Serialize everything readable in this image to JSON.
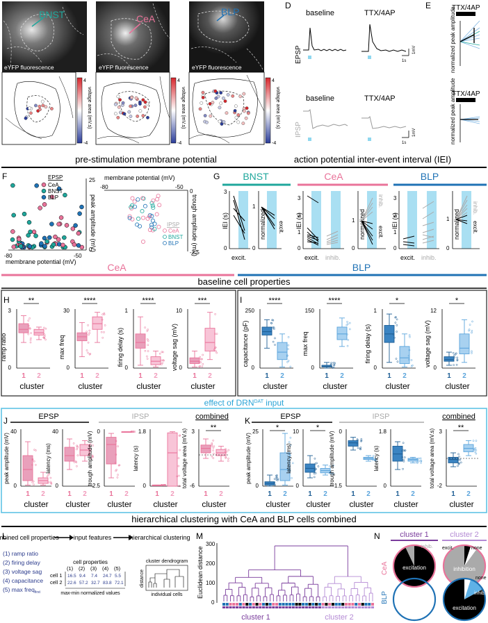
{
  "panels": {
    "A": {
      "letter": "A",
      "region": "BNST",
      "caption": "eYFP fluorescence",
      "scale_label": "voltage area (mV.s)",
      "scale_max": "4",
      "scale_min": "-4"
    },
    "B": {
      "letter": "B",
      "region": "CeA",
      "caption": "eYFP fluorescence",
      "scale_label": "voltage area (mV.s)",
      "scale_max": "4",
      "scale_min": "-4"
    },
    "C": {
      "letter": "C",
      "region": "BLP",
      "caption": "eYFP fluorescence",
      "scale_label": "voltage area (mV.s)",
      "scale_max": "4",
      "scale_min": "-4"
    },
    "D": {
      "letter": "D",
      "baseline": "baseline",
      "ttx": "TTX/4AP",
      "epsp": "EPSP",
      "ipsp": "IPSP",
      "scale_v": "1mV",
      "scale_t": "1s"
    },
    "E": {
      "letter": "E",
      "ttx": "TTX/4AP",
      "ylabel": "normalized peak amplitude"
    }
  },
  "sections": {
    "premembrane": "pre-stimulation membrane potential",
    "iei": "action potential inter-event interval (IEI)",
    "cea": "CeA",
    "blp": "BLP",
    "baseline": "baseline cell properties",
    "drn": "effect of DRN",
    "drn_sup": "DAT",
    "drn_tail": " input",
    "hier": "hierarchical clustering with CeA and BLP cells combined"
  },
  "F": {
    "letter": "F",
    "epsp_legend": "EPSP",
    "ipsp_legend": "IPSP",
    "legend": [
      "CeA",
      "BNST",
      "BLP"
    ],
    "xlabel": "membrane potential (mV)",
    "ylabel_peak": "peak amplitude (mV)",
    "ylabel_trough": "trough amplitude (mV)",
    "top_xlabel": "membrane potential (mV)",
    "ticks": {
      "x_left": "-80",
      "x_right": "-50",
      "y_top": "25",
      "y_zero": "0",
      "t_left": "-80",
      "t_right": "-50",
      "t_zero": "0",
      "t_min": "-2.5"
    }
  },
  "G": {
    "letter": "G",
    "regions": [
      "BNST",
      "CeA",
      "BLP"
    ],
    "ylabel_iei": "IEI (s)",
    "ylabel_norm": "normalized",
    "excit": "excit.",
    "inhib": "inhib.",
    "bnst_ticks": [
      "3",
      "0"
    ],
    "cea_ticks": [
      "3",
      "2",
      "1",
      "0"
    ],
    "blp_ticks": [
      "3",
      "2",
      "1",
      "0"
    ],
    "norm_ticks": [
      "1",
      "0"
    ]
  },
  "H": {
    "letter": "H",
    "sig": [
      "**",
      "****",
      "****",
      "***"
    ],
    "ylabels": [
      "ramp ratio",
      "max freq",
      "firing delay (s)",
      "voltage sag (mV)"
    ],
    "xlabel": "cluster",
    "ticks": [
      [
        "3",
        "0"
      ],
      [
        "30",
        "0"
      ],
      [
        "1",
        "0"
      ],
      [
        "10",
        "0"
      ]
    ],
    "groups": [
      "1",
      "2"
    ]
  },
  "I": {
    "letter": "I",
    "sig": [
      "****",
      "****",
      "*",
      "*"
    ],
    "ylabels": [
      "capacitance (pF)",
      "max freq",
      "firing delay (s)",
      "voltage sag (mV)"
    ],
    "xlabel": "cluster",
    "ticks": [
      [
        "250",
        "0"
      ],
      [
        "150",
        "0"
      ],
      [
        "1",
        "0"
      ],
      [
        "12",
        "0"
      ]
    ],
    "groups": [
      "1",
      "2"
    ]
  },
  "J": {
    "letter": "J",
    "epsp": "EPSP",
    "ipsp": "IPSP",
    "combined": "combined",
    "sig": "**",
    "ylabels": [
      "peak amplitude (mV)",
      "latency (ms)",
      "trough amplitude (mV)",
      "latency (s)",
      "total voltage area (mV.s)"
    ],
    "ticks": [
      [
        "40",
        "0"
      ],
      [
        "40",
        "0"
      ],
      [
        "0",
        "-2.5"
      ],
      [
        "1.8",
        "0"
      ],
      [
        "3",
        "-6"
      ]
    ],
    "xlabel": "cluster",
    "groups": [
      "1",
      "2"
    ]
  },
  "K": {
    "letter": "K",
    "epsp": "EPSP",
    "ipsp": "IPSP",
    "combined": "combined",
    "sig": [
      "*",
      "*",
      "**"
    ],
    "ylabels": [
      "peak amplitude (mV)",
      "latency (ms)",
      "trough amplitude (mV)",
      "latency (s)",
      "total voltage area (mV.s)"
    ],
    "ticks": [
      [
        "25",
        "0"
      ],
      [
        "10",
        "0"
      ],
      [
        "0",
        "-1.5"
      ],
      [
        "1.8",
        "0"
      ],
      [
        "3",
        "-2"
      ]
    ],
    "xlabel": "cluster",
    "groups": [
      "1",
      "2"
    ]
  },
  "L": {
    "letter": "L",
    "step1": "combined cell properties",
    "step2": "input features",
    "step3": "hierarchical clustering",
    "features": [
      "(1) ramp ratio",
      "(2) firing delay",
      "(3) voltage sag",
      "(4) capacitance",
      "(5) max freq"
    ],
    "feat_sub": "first",
    "table_title": "cell properties",
    "table_cols": [
      "(1)",
      "(2)",
      "(3)",
      "(4)",
      "(5)"
    ],
    "rows": [
      {
        "name": "cell 1",
        "vals": [
          "16.5",
          "9.4",
          "7.4",
          "24.7",
          "5.5"
        ]
      },
      {
        "name": "cell 2",
        "vals": [
          "22.6",
          "57.2",
          "32.7",
          "83.8",
          "72.1"
        ]
      }
    ],
    "norm": "max-min normalized values",
    "dendro": "cluster dendrogram",
    "distance": "distance",
    "cells": "individual cells"
  },
  "M": {
    "letter": "M",
    "ylabel": "Euclidean distance",
    "ticks": [
      "300",
      "200",
      "100",
      "0"
    ],
    "cluster1": "cluster 1",
    "cluster2": "cluster 2"
  },
  "N": {
    "letter": "N",
    "cluster1": "cluster 1",
    "cluster2": "cluster 2",
    "rows": [
      "CeA",
      "BLP"
    ],
    "labels": {
      "excitation": "excitation",
      "inhibition": "inhibition",
      "inhib": "inhib.",
      "excit": "excit.",
      "none": "none"
    }
  },
  "colors": {
    "cea": "#e9739a",
    "bnst": "#1fa79c",
    "blp": "#1f72b5",
    "blp_light": "#7fb6e3",
    "cea_light": "#f4a9c3",
    "cluster1": "#7a3c9c",
    "cluster2": "#b48ad4",
    "blue_box": "#5fc3e4",
    "stim": "#8fd7ef"
  }
}
